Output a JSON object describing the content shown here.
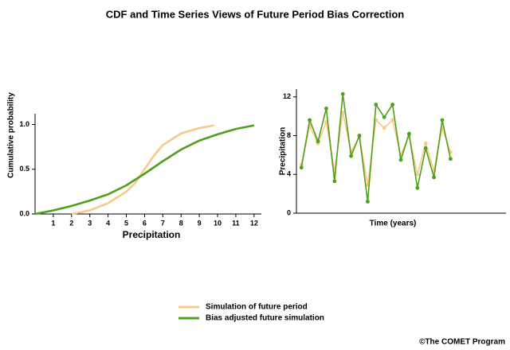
{
  "title": "CDF and Time Series Views of Future Period Bias Correction",
  "credit": "©The COMET Program",
  "chart_data": [
    {
      "type": "line",
      "xlabel": "Precipitation",
      "ylabel": "Cumulative probability",
      "xlim": [
        0,
        12.4
      ],
      "ylim": [
        0,
        1.12
      ],
      "xticks": [
        1,
        2,
        3,
        4,
        5,
        6,
        7,
        8,
        9,
        10,
        11,
        12
      ],
      "yticks": [
        {
          "value": 0,
          "label": "0.0"
        },
        {
          "value": 0.5,
          "label": "0.5"
        },
        {
          "value": 1,
          "label": "1.0"
        }
      ],
      "markers": false,
      "series": [
        {
          "name": "Simulation of future period",
          "color": "#f9c98a",
          "x": [
            2,
            3,
            4,
            5,
            5.5,
            6,
            6.5,
            7,
            8,
            9,
            9.8
          ],
          "values": [
            0,
            0.04,
            0.12,
            0.25,
            0.35,
            0.5,
            0.65,
            0.77,
            0.9,
            0.96,
            0.99
          ]
        },
        {
          "name": "Bias adjusted future simulation",
          "color": "#4fa01a",
          "x": [
            0,
            1,
            2,
            3,
            4,
            5,
            6,
            7,
            8,
            9,
            10,
            11,
            12
          ],
          "values": [
            0,
            0.04,
            0.09,
            0.15,
            0.22,
            0.32,
            0.45,
            0.59,
            0.72,
            0.82,
            0.89,
            0.95,
            0.99
          ]
        }
      ]
    },
    {
      "type": "line",
      "xlabel": "Time (years)",
      "ylabel": "Precipitation",
      "xlim": [
        0.4,
        25.7
      ],
      "ylim": [
        0,
        12.8
      ],
      "yticks": [
        0,
        4,
        8,
        12
      ],
      "markers": true,
      "series": [
        {
          "name": "Simulation of future period",
          "color": "#f9c98a",
          "x": [
            1,
            2,
            3,
            4,
            5,
            6,
            7,
            8,
            9,
            10,
            11,
            12,
            13,
            14,
            15,
            16,
            17,
            18,
            19
          ],
          "values": [
            5.0,
            9.0,
            7.2,
            9.4,
            4.3,
            10.4,
            6.3,
            7.9,
            2.9,
            9.6,
            8.8,
            9.6,
            6.0,
            8.0,
            4.0,
            7.2,
            4.4,
            8.8,
            6.3
          ]
        },
        {
          "name": "Bias adjusted future simulation",
          "color": "#4fa01a",
          "x": [
            1,
            2,
            3,
            4,
            5,
            6,
            7,
            8,
            9,
            10,
            11,
            12,
            13,
            14,
            15,
            16,
            17,
            18,
            19
          ],
          "values": [
            4.7,
            9.6,
            7.4,
            10.8,
            3.3,
            12.3,
            5.9,
            8.0,
            1.2,
            11.2,
            9.9,
            11.2,
            5.5,
            8.2,
            2.6,
            6.7,
            3.7,
            9.6,
            5.6
          ]
        }
      ]
    }
  ]
}
